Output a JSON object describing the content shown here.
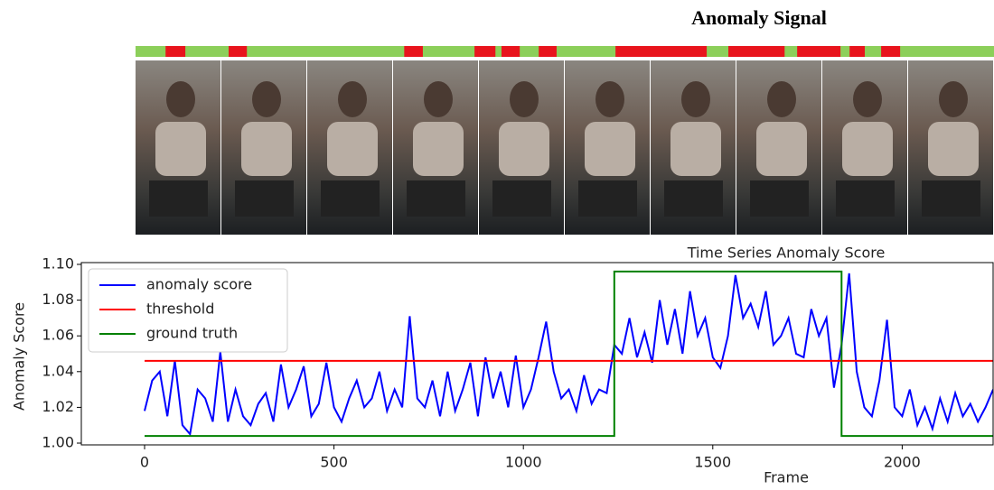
{
  "chart_data": [
    {
      "type": "segments",
      "title": "Anomaly Signal",
      "xlim": [
        -24,
        2235
      ],
      "color": "#8ccf5a",
      "segment_color": "#e8141c",
      "segments": [
        [
          55,
          107
        ],
        [
          221,
          269
        ],
        [
          683,
          732
        ],
        [
          868,
          923
        ],
        [
          939,
          987
        ],
        [
          1037,
          1084
        ],
        [
          1239,
          1479
        ],
        [
          1536,
          1684
        ],
        [
          1717,
          1831
        ],
        [
          1855,
          1895
        ],
        [
          1938,
          1988
        ]
      ]
    },
    {
      "type": "line",
      "title": "Time Series Anomaly Score",
      "xlabel": "Frame",
      "ylabel": "Anomaly Score",
      "xlim": [
        -167,
        2240
      ],
      "ylim": [
        0.999,
        1.101
      ],
      "xticks": [
        0,
        500,
        1000,
        1500,
        2000
      ],
      "yticks": [
        {
          "value": 1,
          "label": "1.00"
        },
        1.02,
        1.04,
        1.06,
        1.08,
        {
          "value": 1.1,
          "label": "1.10"
        }
      ],
      "legend": "upper left",
      "series": [
        {
          "name": "anomaly score",
          "color": "#0000ff",
          "x": [
            0,
            20,
            40,
            60,
            80,
            100,
            120,
            140,
            160,
            180,
            200,
            220,
            240,
            260,
            280,
            300,
            320,
            340,
            360,
            380,
            400,
            420,
            440,
            460,
            480,
            500,
            520,
            540,
            560,
            580,
            600,
            620,
            640,
            660,
            680,
            700,
            720,
            740,
            760,
            780,
            800,
            820,
            840,
            860,
            880,
            900,
            920,
            940,
            960,
            980,
            1000,
            1020,
            1040,
            1060,
            1080,
            1100,
            1120,
            1140,
            1160,
            1180,
            1200,
            1220,
            1240,
            1260,
            1280,
            1300,
            1320,
            1340,
            1360,
            1380,
            1400,
            1420,
            1440,
            1460,
            1480,
            1500,
            1520,
            1540,
            1560,
            1580,
            1600,
            1620,
            1640,
            1660,
            1680,
            1700,
            1720,
            1740,
            1760,
            1780,
            1800,
            1820,
            1840,
            1860,
            1880,
            1900,
            1920,
            1940,
            1960,
            1980,
            2000,
            2020,
            2040,
            2060,
            2080,
            2100,
            2120,
            2140,
            2160,
            2180,
            2200,
            2220,
            2240
          ],
          "values": [
            1.018,
            1.035,
            1.04,
            1.015,
            1.046,
            1.01,
            1.005,
            1.03,
            1.025,
            1.012,
            1.051,
            1.012,
            1.03,
            1.015,
            1.01,
            1.022,
            1.028,
            1.012,
            1.044,
            1.02,
            1.03,
            1.043,
            1.015,
            1.022,
            1.045,
            1.02,
            1.012,
            1.025,
            1.035,
            1.02,
            1.025,
            1.04,
            1.018,
            1.03,
            1.02,
            1.071,
            1.025,
            1.02,
            1.035,
            1.015,
            1.04,
            1.018,
            1.03,
            1.045,
            1.015,
            1.048,
            1.025,
            1.04,
            1.02,
            1.049,
            1.02,
            1.03,
            1.048,
            1.068,
            1.04,
            1.025,
            1.03,
            1.018,
            1.038,
            1.022,
            1.03,
            1.028,
            1.055,
            1.05,
            1.07,
            1.048,
            1.062,
            1.045,
            1.08,
            1.055,
            1.075,
            1.05,
            1.085,
            1.06,
            1.07,
            1.048,
            1.042,
            1.06,
            1.094,
            1.07,
            1.078,
            1.065,
            1.085,
            1.055,
            1.06,
            1.07,
            1.05,
            1.048,
            1.075,
            1.06,
            1.07,
            1.031,
            1.055,
            1.095,
            1.04,
            1.02,
            1.015,
            1.035,
            1.069,
            1.02,
            1.015,
            1.03,
            1.01,
            1.02,
            1.008,
            1.025,
            1.012,
            1.028,
            1.015,
            1.022,
            1.012,
            1.02,
            1.03
          ]
        },
        {
          "name": "threshold",
          "color": "#ff0000",
          "x": [
            0,
            2240
          ],
          "values": [
            1.046,
            1.046
          ]
        },
        {
          "name": "ground truth",
          "color": "#008000",
          "x": [
            0,
            1240,
            1240,
            1840,
            1840,
            2240
          ],
          "values": [
            1.004,
            1.004,
            1.096,
            1.096,
            1.004,
            1.004
          ]
        }
      ]
    }
  ]
}
